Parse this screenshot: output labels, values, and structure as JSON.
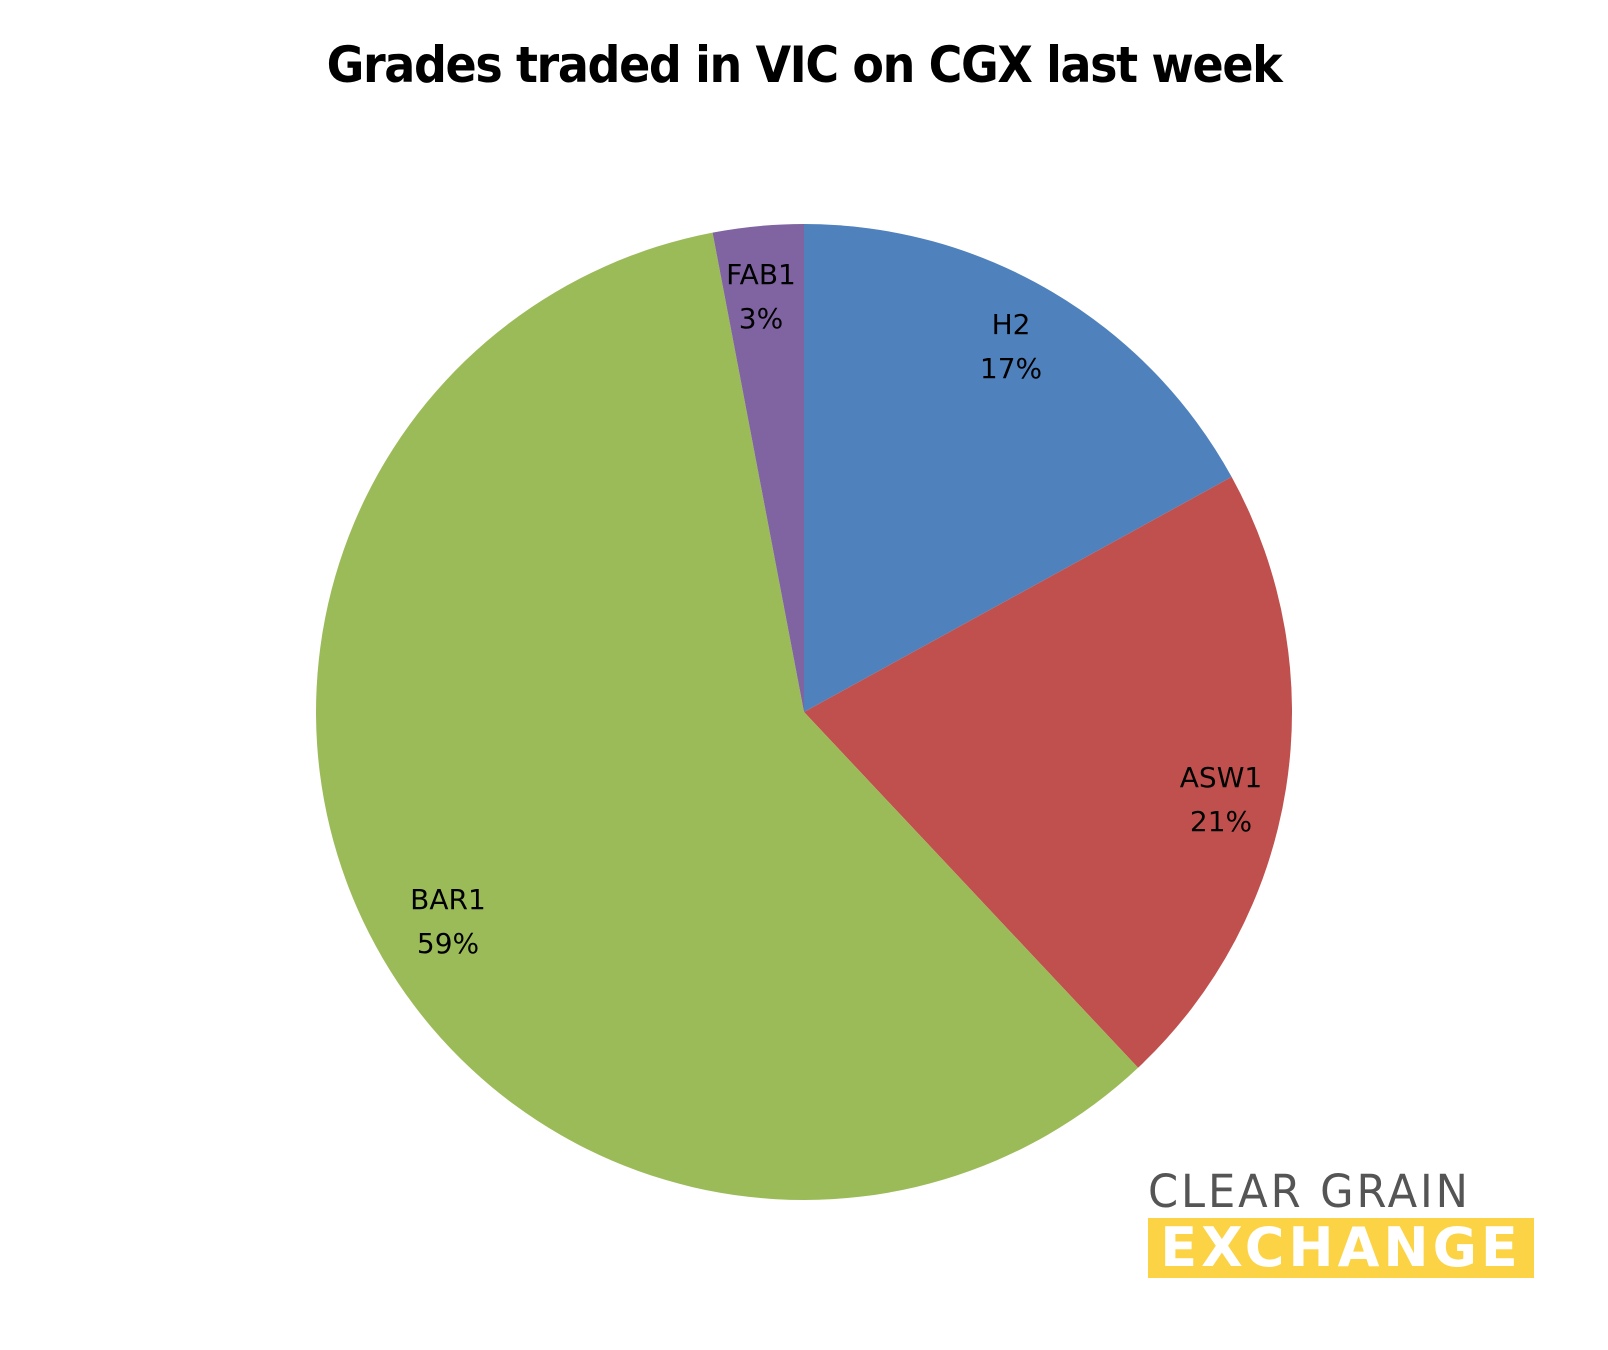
{
  "chart_data": {
    "type": "pie",
    "title": "Grades traded in VIC on CGX last week",
    "categories": [
      "H2",
      "ASW1",
      "BAR1",
      "FAB1"
    ],
    "values": [
      17,
      21,
      59,
      3
    ],
    "value_labels": [
      "17%",
      "21%",
      "59%",
      "3%"
    ],
    "colors": [
      "#4F81BD",
      "#C0504D",
      "#9BBB59",
      "#8064A2"
    ],
    "start_angle_deg": 0,
    "direction": "clockwise",
    "legend": "none",
    "data_labels": "category and percentage inside slices"
  },
  "title": "Grades traded in VIC on CGX last week",
  "labels": {
    "h2": {
      "name": "H2",
      "pct": "17%"
    },
    "asw1": {
      "name": "ASW1",
      "pct": "21%"
    },
    "bar1": {
      "name": "BAR1",
      "pct": "59%"
    },
    "fab1": {
      "name": "FAB1",
      "pct": "3%"
    }
  },
  "logo": {
    "line1": "CLEAR GRAIN",
    "line2": "EXCHANGE",
    "text_color": "#555555",
    "bar_color": "#FCD344"
  }
}
